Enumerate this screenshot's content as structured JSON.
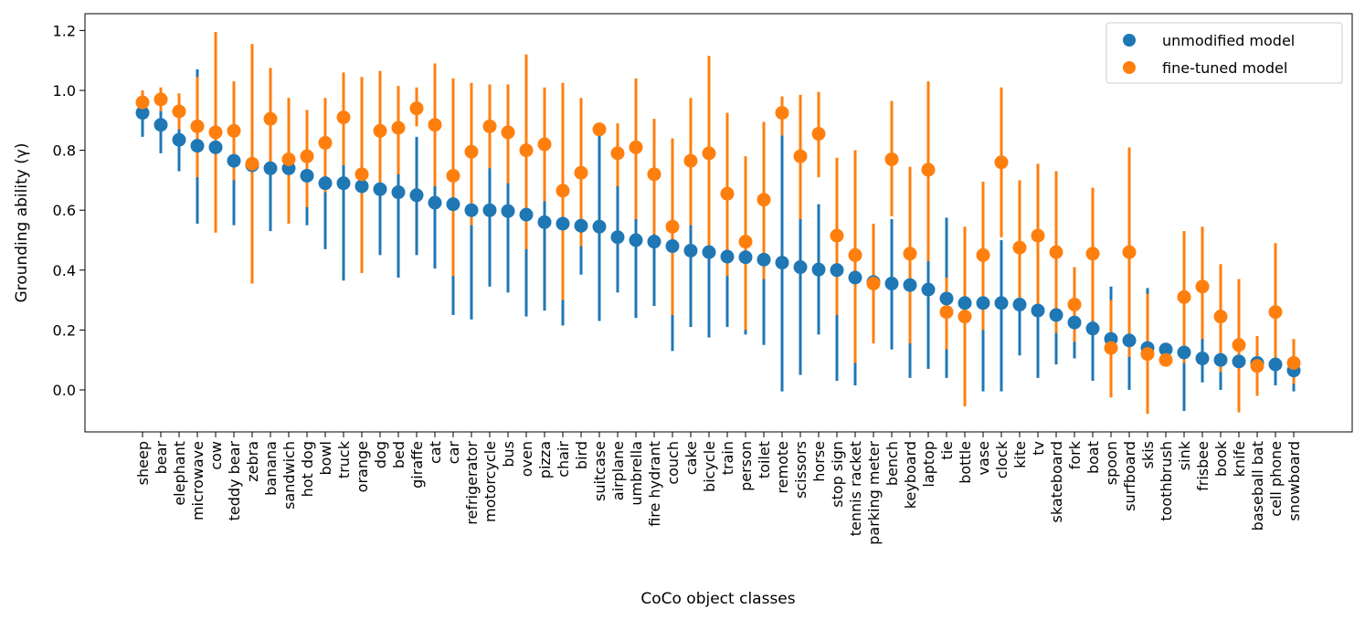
{
  "chart_data": {
    "type": "scatter",
    "title": "",
    "xlabel": "CoCo object classes",
    "ylabel": "Grounding ability (γ)",
    "ylim": [
      -0.14,
      1.25
    ],
    "yticks": [
      "0.0",
      "0.2",
      "0.4",
      "0.6",
      "0.8",
      "1.0",
      "1.2"
    ],
    "ytick_values": [
      0.0,
      0.2,
      0.4,
      0.6,
      0.8,
      1.0,
      1.2
    ],
    "legend_position": "top-right",
    "colors": {
      "unmodified": "#1f77b4",
      "finetuned": "#ff7f0e"
    },
    "categories": [
      "sheep",
      "bear",
      "elephant",
      "microwave",
      "cow",
      "teddy bear",
      "zebra",
      "banana",
      "sandwich",
      "hot dog",
      "bowl",
      "truck",
      "orange",
      "dog",
      "bed",
      "giraffe",
      "cat",
      "car",
      "refrigerator",
      "motorcycle",
      "bus",
      "oven",
      "pizza",
      "chair",
      "bird",
      "suitcase",
      "airplane",
      "umbrella",
      "fire hydrant",
      "couch",
      "cake",
      "bicycle",
      "train",
      "person",
      "toilet",
      "remote",
      "scissors",
      "horse",
      "stop sign",
      "tennis racket",
      "parking meter",
      "bench",
      "keyboard",
      "laptop",
      "tie",
      "bottle",
      "vase",
      "clock",
      "kite",
      "tv",
      "skateboard",
      "fork",
      "boat",
      "spoon",
      "surfboard",
      "skis",
      "toothbrush",
      "sink",
      "frisbee",
      "book",
      "knife",
      "baseball bat",
      "cell phone",
      "snowboard"
    ],
    "series": [
      {
        "name": "unmodified model",
        "values": [
          0.925,
          0.885,
          0.835,
          0.815,
          0.81,
          0.765,
          0.75,
          0.74,
          0.74,
          0.715,
          0.69,
          0.69,
          0.68,
          0.67,
          0.66,
          0.65,
          0.625,
          0.62,
          0.6,
          0.6,
          0.597,
          0.585,
          0.56,
          0.555,
          0.548,
          0.545,
          0.51,
          0.5,
          0.495,
          0.48,
          0.465,
          0.46,
          0.445,
          0.443,
          0.435,
          0.425,
          0.41,
          0.402,
          0.4,
          0.375,
          0.36,
          0.355,
          0.35,
          0.335,
          0.305,
          0.29,
          0.29,
          0.29,
          0.285,
          0.265,
          0.25,
          0.225,
          0.205,
          0.17,
          0.165,
          0.14,
          0.135,
          0.125,
          0.105,
          0.1,
          0.095,
          0.09,
          0.085,
          0.065
        ],
        "err_low": [
          0.845,
          0.79,
          0.73,
          0.555,
          0.7,
          0.55,
          0.74,
          0.53,
          0.555,
          0.55,
          0.47,
          0.365,
          0.5,
          0.45,
          0.375,
          0.45,
          0.405,
          0.25,
          0.235,
          0.345,
          0.325,
          0.245,
          0.265,
          0.215,
          0.385,
          0.23,
          0.325,
          0.24,
          0.28,
          0.13,
          0.21,
          0.175,
          0.21,
          0.185,
          0.15,
          -0.005,
          0.05,
          0.185,
          0.03,
          0.015,
          0.16,
          0.135,
          0.04,
          0.07,
          0.04,
          0.1,
          -0.005,
          -0.005,
          0.115,
          0.04,
          0.085,
          0.105,
          0.03,
          0.005,
          0.0,
          -0.05,
          0.09,
          -0.07,
          0.025,
          0.0,
          0.02,
          0.03,
          0.015,
          -0.005
        ],
        "err_high": [
          0.995,
          0.96,
          0.92,
          1.07,
          0.9,
          0.8,
          0.76,
          0.9,
          0.9,
          0.83,
          0.82,
          0.8,
          0.83,
          0.83,
          0.84,
          0.845,
          0.82,
          0.85,
          0.85,
          0.84,
          0.84,
          0.82,
          0.82,
          0.81,
          0.71,
          0.86,
          0.79,
          0.75,
          0.74,
          0.72,
          0.73,
          0.78,
          0.68,
          0.64,
          0.7,
          0.85,
          0.76,
          0.62,
          0.7,
          0.59,
          0.54,
          0.57,
          0.55,
          0.43,
          0.575,
          0.46,
          0.54,
          0.5,
          0.45,
          0.45,
          0.4,
          0.35,
          0.33,
          0.345,
          0.28,
          0.34,
          0.155,
          0.3,
          0.19,
          0.17,
          0.18,
          0.13,
          0.14,
          0.11
        ]
      },
      {
        "name": "fine-tuned model",
        "values": [
          0.96,
          0.97,
          0.93,
          0.88,
          0.86,
          0.865,
          0.755,
          0.905,
          0.77,
          0.78,
          0.825,
          0.91,
          0.72,
          0.865,
          0.875,
          0.94,
          0.885,
          0.715,
          0.795,
          0.88,
          0.86,
          0.8,
          0.82,
          0.665,
          0.725,
          0.87,
          0.79,
          0.81,
          0.72,
          0.545,
          0.765,
          0.79,
          0.655,
          0.495,
          0.635,
          0.925,
          0.78,
          0.855,
          0.515,
          0.45,
          0.355,
          0.77,
          0.455,
          0.735,
          0.26,
          0.245,
          0.45,
          0.76,
          0.475,
          0.515,
          0.46,
          0.285,
          0.455,
          0.14,
          0.46,
          0.12,
          0.1,
          0.31,
          0.345,
          0.245,
          0.15,
          0.08,
          0.26,
          0.09
        ],
        "err_low": [
          0.93,
          0.93,
          0.87,
          0.71,
          0.525,
          0.7,
          0.355,
          0.73,
          0.555,
          0.61,
          0.66,
          0.75,
          0.39,
          0.65,
          0.72,
          0.88,
          0.68,
          0.38,
          0.55,
          0.74,
          0.69,
          0.47,
          0.63,
          0.3,
          0.48,
          0.86,
          0.68,
          0.57,
          0.52,
          0.25,
          0.55,
          0.45,
          0.38,
          0.2,
          0.37,
          0.85,
          0.57,
          0.71,
          0.25,
          0.09,
          0.155,
          0.58,
          0.155,
          0.43,
          0.135,
          -0.055,
          0.2,
          0.51,
          0.3,
          0.27,
          0.19,
          0.16,
          0.23,
          -0.025,
          0.11,
          -0.08,
          0.09,
          0.09,
          0.17,
          0.06,
          -0.075,
          -0.02,
          0.08,
          0.02
        ],
        "err_high": [
          1.0,
          1.01,
          0.99,
          1.045,
          1.195,
          1.03,
          1.155,
          1.075,
          0.975,
          0.935,
          0.975,
          1.06,
          1.045,
          1.065,
          1.015,
          1.01,
          1.09,
          1.04,
          1.025,
          1.02,
          1.02,
          1.12,
          1.01,
          1.025,
          0.975,
          0.88,
          0.89,
          1.04,
          0.905,
          0.84,
          0.975,
          1.115,
          0.925,
          0.78,
          0.895,
          0.98,
          0.985,
          0.995,
          0.775,
          0.8,
          0.555,
          0.965,
          0.745,
          1.03,
          0.375,
          0.545,
          0.695,
          1.01,
          0.7,
          0.755,
          0.73,
          0.41,
          0.675,
          0.3,
          0.81,
          0.32,
          0.11,
          0.53,
          0.545,
          0.42,
          0.37,
          0.18,
          0.49,
          0.17
        ]
      }
    ]
  }
}
